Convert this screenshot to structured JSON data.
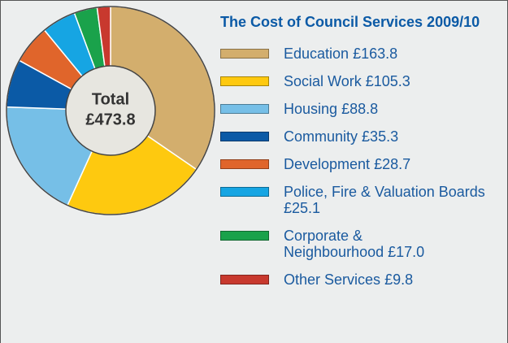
{
  "chart_data": {
    "type": "donut",
    "title": "The Cost of Council Services 2009/10",
    "categories": [
      "Education",
      "Social Work",
      "Housing",
      "Community",
      "Development",
      "Police, Fire & Valuation Boards",
      "Corporate & Neighbourhood",
      "Other Services"
    ],
    "values": [
      163.8,
      105.3,
      88.8,
      35.3,
      28.7,
      25.1,
      17.0,
      9.8
    ],
    "value_labels": [
      "£163.8",
      "£105.3",
      "£88.8",
      "£35.3",
      "£28.7",
      "£25.1",
      "£17.0",
      "£9.8"
    ],
    "colors": [
      "#d3ae6d",
      "#fec90f",
      "#76bfe7",
      "#0b5aa6",
      "#e0652b",
      "#16a5e3",
      "#1aa24b",
      "#c8392e"
    ],
    "center_text": [
      "Total",
      "£473.8"
    ]
  }
}
